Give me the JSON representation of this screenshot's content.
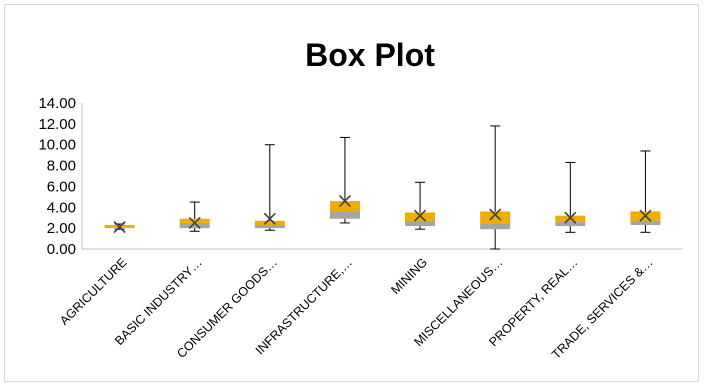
{
  "chart_data": {
    "type": "box",
    "title": "Box Plot",
    "xlabel": "",
    "ylabel": "",
    "ylim": [
      0,
      14
    ],
    "y_ticks": [
      "0.00",
      "2.00",
      "4.00",
      "6.00",
      "8.00",
      "10.00",
      "12.00",
      "14.00"
    ],
    "categories": [
      "AGRICULTURE",
      "BASIC INDUSTRY…",
      "CONSUMER GOODS…",
      "INFRASTRUCTURE,…",
      "MINING",
      "MISCELLANEOUS…",
      "PROPERTY, REAL…",
      "TRADE, SERVICES &…"
    ],
    "boxes": [
      {
        "min": 1.9,
        "q1": 2.0,
        "median": 2.05,
        "q3": 2.3,
        "max": 2.4,
        "mean": 2.1
      },
      {
        "min": 1.7,
        "q1": 2.0,
        "median": 2.5,
        "q3": 2.9,
        "max": 4.5,
        "mean": 2.5
      },
      {
        "min": 1.8,
        "q1": 2.0,
        "median": 2.3,
        "q3": 2.7,
        "max": 10.0,
        "mean": 2.9
      },
      {
        "min": 2.5,
        "q1": 2.9,
        "median": 3.6,
        "q3": 4.6,
        "max": 10.7,
        "mean": 4.6
      },
      {
        "min": 1.9,
        "q1": 2.2,
        "median": 2.7,
        "q3": 3.5,
        "max": 6.4,
        "mean": 3.2
      },
      {
        "min": 0.0,
        "q1": 1.9,
        "median": 2.4,
        "q3": 3.6,
        "max": 11.8,
        "mean": 3.3
      },
      {
        "min": 1.6,
        "q1": 2.2,
        "median": 2.6,
        "q3": 3.2,
        "max": 8.3,
        "mean": 3.0
      },
      {
        "min": 1.6,
        "q1": 2.3,
        "median": 2.7,
        "q3": 3.6,
        "max": 9.4,
        "mean": 3.2
      }
    ],
    "grid": false,
    "colors": {
      "lower_box": "#a5a5a5",
      "upper_box": "#f0ad00",
      "whisker": "#000000",
      "mean_marker": "#404040",
      "axis": "#bfbfbf"
    }
  }
}
